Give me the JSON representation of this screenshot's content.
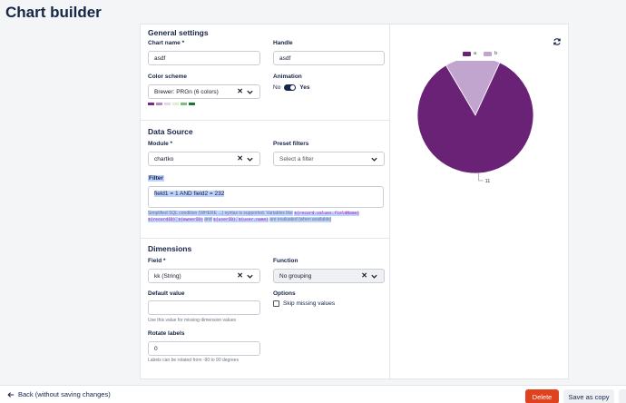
{
  "page": {
    "title": "Chart builder"
  },
  "general": {
    "heading": "General settings",
    "chart_name_label": "Chart name *",
    "chart_name_value": "asdf",
    "handle_label": "Handle",
    "handle_value": "asdf",
    "color_scheme_label": "Color scheme",
    "color_scheme_value": "Brewer: PRGn (6 colors)",
    "color_swatches": [
      "#762a83",
      "#af8dc3",
      "#e7d4e8",
      "#d9f0d3",
      "#7fbf7b",
      "#1b7837"
    ],
    "animation_label": "Animation",
    "animation_off": "No",
    "animation_on": "Yes"
  },
  "datasource": {
    "heading": "Data Source",
    "module_label": "Module *",
    "module_value": "chartko",
    "preset_label": "Preset filters",
    "preset_placeholder": "Select a filter",
    "filter_label": "Filter",
    "filter_value": "field1 = 1 AND field2 = 232",
    "hint_1": "Simplified SQL condition (WHERE ...) syntax is supported. Variables like",
    "hint_code_1": "${record.values.fieldName}",
    "hint_code_2": "${recordID}",
    "hint_code_3": "${ownerID}",
    "hint_and_1": "and",
    "hint_code_4": "${userID}",
    "hint_code_5": "${user.name}",
    "hint_2": "are evaluated (when available)"
  },
  "dimensions": {
    "heading": "Dimensions",
    "field_label": "Field *",
    "field_value": "kk (String)",
    "function_label": "Function",
    "function_value": "No grouping",
    "default_label": "Default value",
    "default_value": "",
    "default_hint": "Use this value for missing dimension values",
    "options_label": "Options",
    "skip_missing_label": "Skip missing values",
    "skip_missing_checked": false,
    "rotate_label": "Rotate labels",
    "rotate_value": "0",
    "rotate_hint": "Labels can be rotated from -90 to 90 degrees"
  },
  "preview": {
    "refresh_icon": "refresh-icon"
  },
  "chart_data": {
    "type": "pie",
    "categories": [
      "a",
      "b"
    ],
    "values": [
      11,
      2
    ],
    "colors": [
      "#6a2277",
      "#c2a5cf"
    ],
    "legend_position": "top",
    "slice_labels": [
      "11",
      "2"
    ]
  },
  "footer": {
    "back_label": "Back (without saving changes)",
    "delete_label": "Delete",
    "save_copy_label": "Save as copy"
  }
}
